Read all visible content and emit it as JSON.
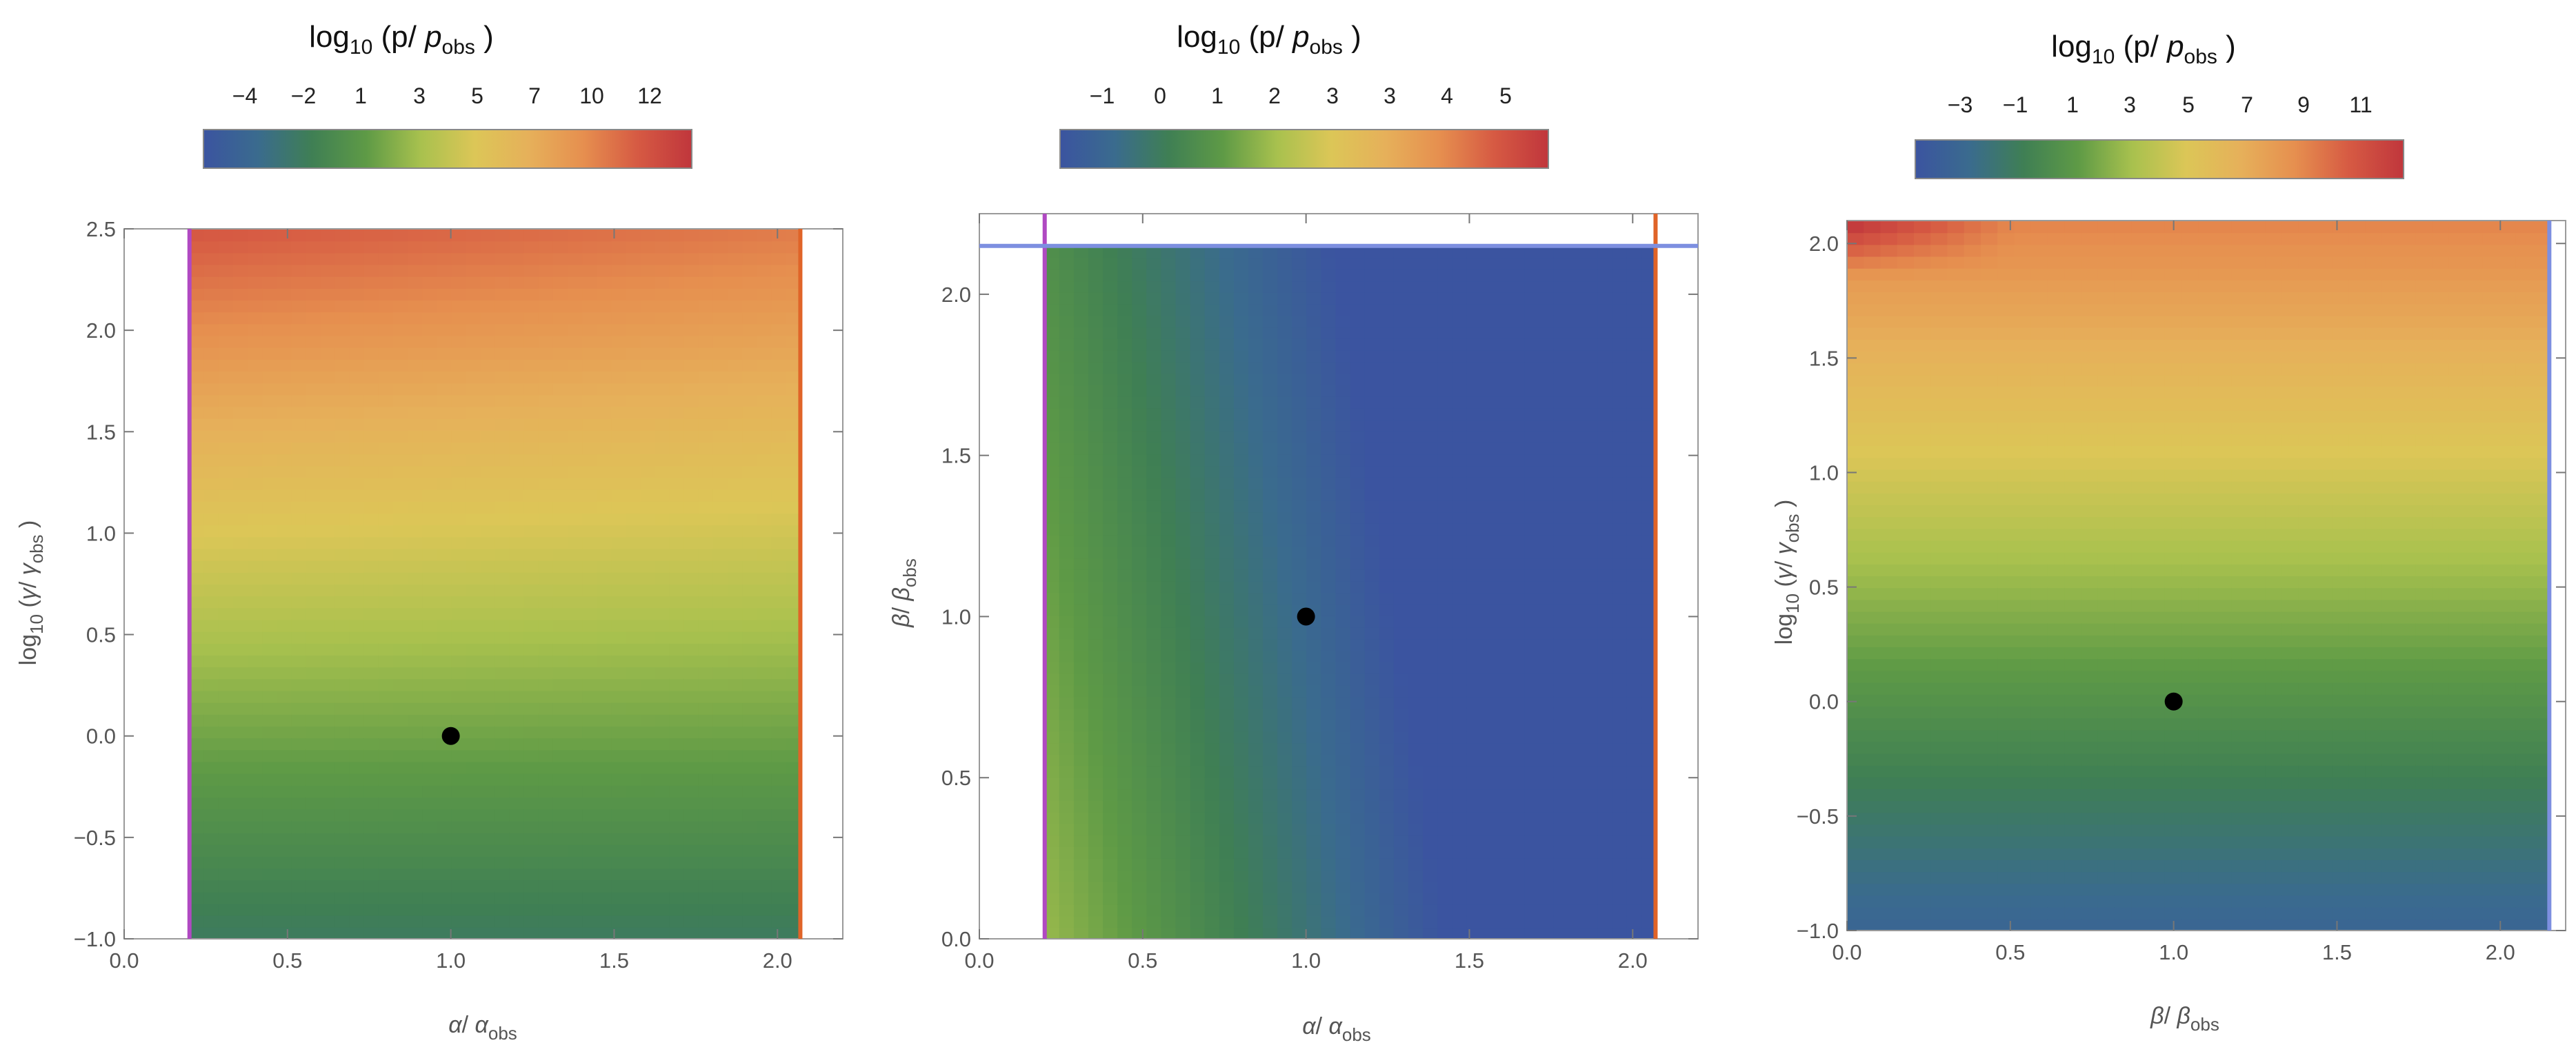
{
  "colors": {
    "scale": [
      "#3b54a0",
      "#3a6b8e",
      "#3f7f54",
      "#5e9a46",
      "#a8c14e",
      "#dcc657",
      "#e6b05a",
      "#e68f4f",
      "#d65a43",
      "#c0363c"
    ],
    "purple_line": "#b049c2",
    "orange_line": "#e06428",
    "blue_line": "#7d8fe0",
    "marker": "#000000"
  },
  "chart_data": [
    {
      "type": "heatmap",
      "colorbar": {
        "title": "log10 (p/ pobs )",
        "title_parts": {
          "base": "log",
          "base_sub": "10",
          "mid": " (p/ ",
          "p": "p",
          "p_sub": "obs",
          "end": " )"
        },
        "ticks": [
          "−4",
          "−2",
          "1",
          "3",
          "5",
          "7",
          "10",
          "12"
        ],
        "range": [
          -5.5,
          14
        ]
      },
      "xlabel": "α/ αobs",
      "ylabel": "log10 (γ/ γobs )",
      "xlim": [
        0,
        2.2
      ],
      "ylim": [
        -1,
        2.5
      ],
      "xticks": [
        "0.0",
        "0.5",
        "1.0",
        "1.5",
        "2.0"
      ],
      "yticks": [
        "−1.0",
        "−0.5",
        "0.0",
        "0.5",
        "1.0",
        "1.5",
        "2.0",
        "2.5"
      ],
      "field_domain": {
        "x": [
          0.2,
          2.07
        ],
        "y": [
          -1,
          2.5
        ]
      },
      "vertical_lines": [
        {
          "x": 0.2,
          "color": "purple"
        },
        {
          "x": 2.07,
          "color": "orange"
        }
      ],
      "horizontal_lines": [],
      "point": {
        "x": 1.0,
        "y": 0.0
      }
    },
    {
      "type": "heatmap",
      "colorbar": {
        "title": "log10 (p/ pobs )",
        "title_parts": {
          "base": "log",
          "base_sub": "10",
          "mid": " (p/ ",
          "p": "p",
          "p_sub": "obs",
          "end": " )"
        },
        "ticks": [
          "−1",
          "0",
          "1",
          "2",
          "3",
          "3",
          "4",
          "5"
        ],
        "range": [
          -1.8,
          6
        ]
      },
      "xlabel": "α/ αobs",
      "ylabel": "β/ βobs",
      "xlim": [
        0,
        2.2
      ],
      "ylim": [
        0,
        2.25
      ],
      "xticks": [
        "0.0",
        "0.5",
        "1.0",
        "1.5",
        "2.0"
      ],
      "yticks": [
        "0.0",
        "0.5",
        "1.0",
        "1.5",
        "2.0"
      ],
      "field_domain": {
        "x": [
          0.2,
          2.07
        ],
        "y": [
          0,
          2.15
        ]
      },
      "vertical_lines": [
        {
          "x": 0.2,
          "color": "purple"
        },
        {
          "x": 2.07,
          "color": "orange"
        }
      ],
      "horizontal_lines": [
        {
          "y": 2.15,
          "color": "blue"
        }
      ],
      "point": {
        "x": 1.0,
        "y": 1.0
      }
    },
    {
      "type": "heatmap",
      "colorbar": {
        "title": "log10 (p/ pobs )",
        "title_parts": {
          "base": "log",
          "base_sub": "10",
          "mid": " (p/ ",
          "p": "p",
          "p_sub": "obs",
          "end": " )"
        },
        "ticks": [
          "−3",
          "−1",
          "1",
          "3",
          "5",
          "7",
          "9",
          "11"
        ],
        "range": [
          -4.5,
          13
        ]
      },
      "xlabel": "β/ βobs",
      "ylabel": "log10 (γ/ γobs )",
      "xlim": [
        0,
        2.2
      ],
      "ylim": [
        -1,
        2.1
      ],
      "xticks": [
        "0.0",
        "0.5",
        "1.0",
        "1.5",
        "2.0"
      ],
      "yticks": [
        "−1.0",
        "−0.5",
        "0.0",
        "0.5",
        "1.0",
        "1.5",
        "2.0"
      ],
      "field_domain": {
        "x": [
          0,
          2.15
        ],
        "y": [
          -1,
          2.1
        ]
      },
      "vertical_lines": [
        {
          "x": 2.15,
          "color": "blue"
        }
      ],
      "horizontal_lines": [],
      "point": {
        "x": 1.0,
        "y": 0.0
      }
    }
  ]
}
